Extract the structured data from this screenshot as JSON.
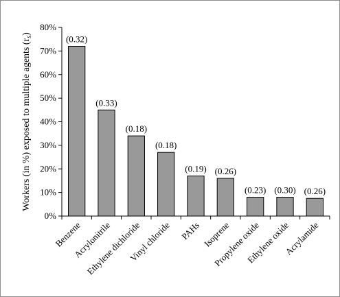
{
  "chart_data": {
    "type": "bar",
    "ylabel": "Workers (in %) exposed to multiple agents (r",
    "ylabel_subscript": "s",
    "ylabel_suffix": ")",
    "xlabel": "",
    "title": "",
    "ylim": [
      0,
      80
    ],
    "y_tick_values": [
      0,
      10,
      20,
      30,
      40,
      50,
      60,
      70,
      80
    ],
    "y_tick_labels": [
      "0%",
      "10%",
      "20%",
      "30%",
      "40%",
      "50%",
      "60%",
      "70%",
      "80%"
    ],
    "grid": false,
    "legend": "none",
    "bar_color": "#999999",
    "bar_edge_color": "#000000",
    "categories": [
      "Benzene",
      "Acrylonitrile",
      "Ethylene dichloride",
      "Vinyl chloride",
      "PAHs",
      "Isoprene",
      "Propylene oxide",
      "Ethylene oxide",
      "Acrylamide"
    ],
    "values": [
      72,
      45,
      34,
      27,
      17,
      16,
      8,
      8,
      7.5
    ],
    "data_labels": [
      "(0.32)",
      "(0.33)",
      "(0.18)",
      "(0.18)",
      "(0.19)",
      "(0.26)",
      "(0.23)",
      "(0.30)",
      "(0.26)"
    ]
  }
}
